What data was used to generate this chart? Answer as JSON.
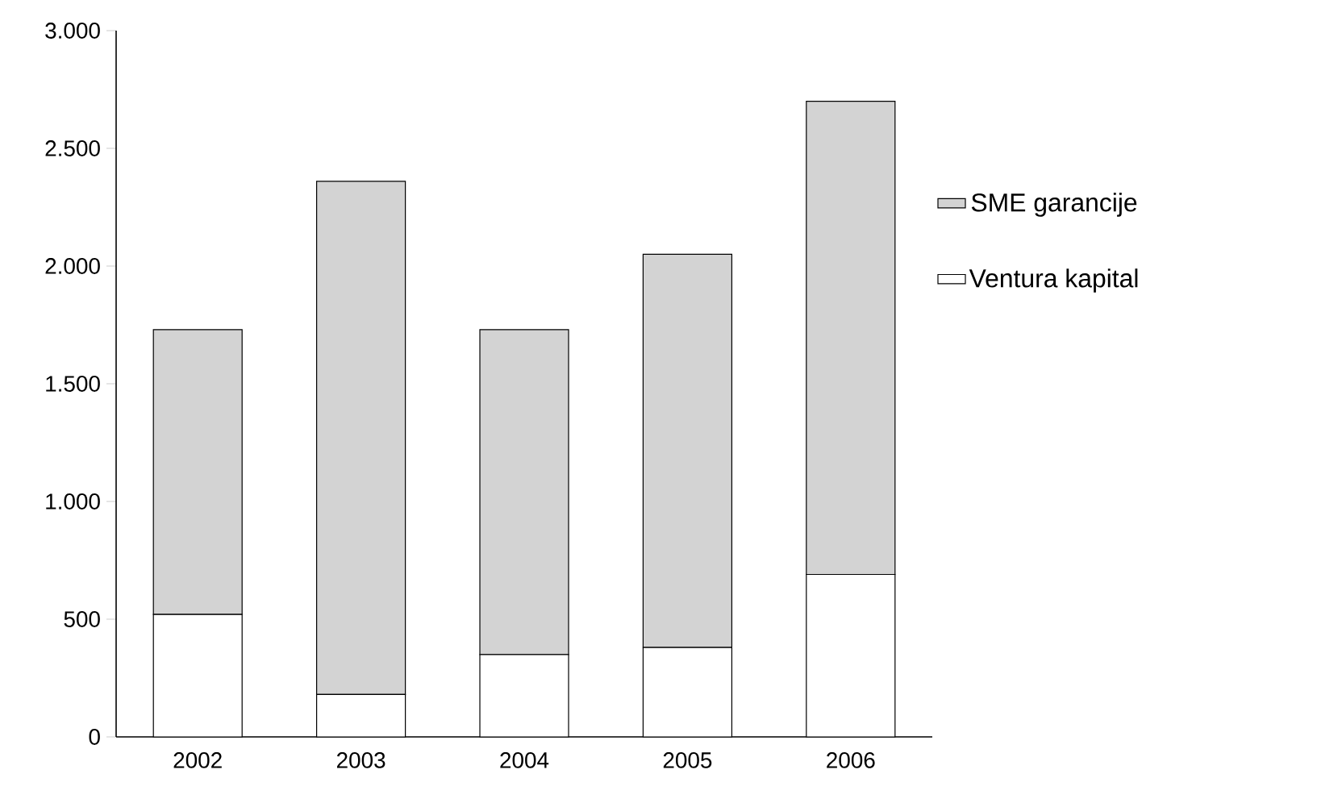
{
  "chart_data": {
    "type": "bar",
    "stacked": true,
    "categories": [
      "2002",
      "2003",
      "2004",
      "2005",
      "2006"
    ],
    "series": [
      {
        "name": "Ventura kapital",
        "color": "#ffffff",
        "values": [
          520,
          180,
          350,
          380,
          690
        ]
      },
      {
        "name": "SME garancije",
        "color": "#d3d3d3",
        "values": [
          1210,
          2180,
          1380,
          1670,
          2010
        ]
      }
    ],
    "ylim": [
      0,
      3000
    ],
    "yticks": [
      {
        "value": 0,
        "label": "0"
      },
      {
        "value": 500,
        "label": "500"
      },
      {
        "value": 1000,
        "label": "1.000"
      },
      {
        "value": 1500,
        "label": "1.500"
      },
      {
        "value": 2000,
        "label": "2.000"
      },
      {
        "value": 2500,
        "label": "2.500"
      },
      {
        "value": 3000,
        "label": "3.000"
      }
    ],
    "legend": "right"
  }
}
